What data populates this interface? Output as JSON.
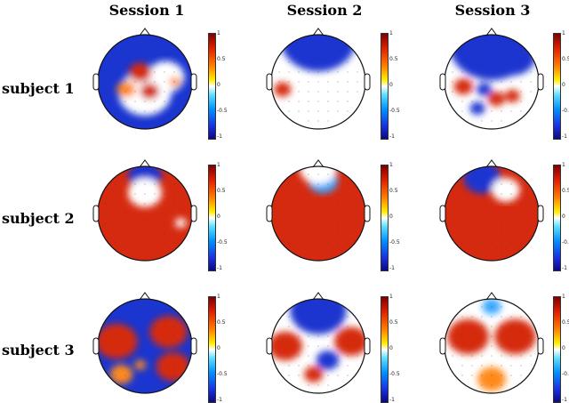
{
  "columns": [
    "Session 1",
    "Session 2",
    "Session 3"
  ],
  "rows": [
    "subject 1",
    "subject 2",
    "subject 3"
  ],
  "colorbar_ticks": [
    "1",
    "0.5",
    "0",
    "-0.5",
    "-1"
  ],
  "colors": {
    "positive": "#d62a10",
    "positive_mid": "#ff8a1a",
    "neutral": "#ffffff",
    "negative_mid": "#3aa8ff",
    "negative": "#1a35d0"
  }
}
